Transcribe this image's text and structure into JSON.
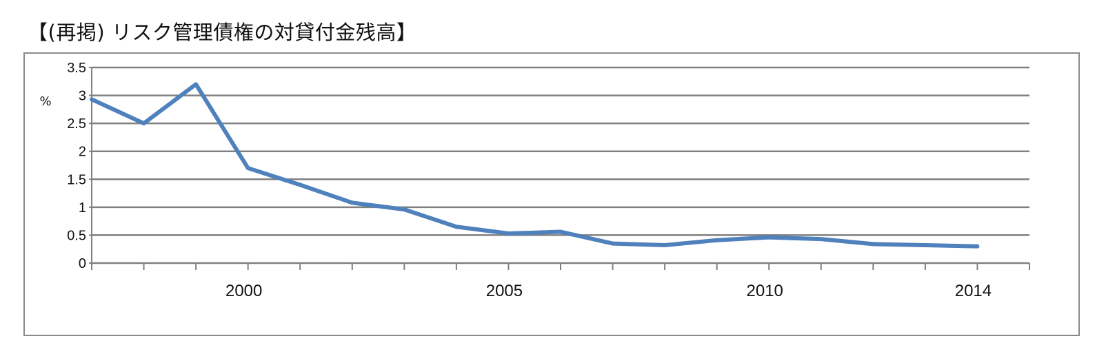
{
  "chart_data": {
    "type": "line",
    "title": "【(再掲) リスク管理債権の対貸付金残高】",
    "xlabel": "",
    "ylabel": "%",
    "xlim": [
      1997,
      2015
    ],
    "ylim": [
      0,
      3.5
    ],
    "yticks": [
      0,
      0.5,
      1,
      1.5,
      2,
      2.5,
      3,
      3.5
    ],
    "ytick_labels": [
      "0",
      "0.5",
      "1",
      "1.5",
      "2",
      "2.5",
      "3",
      "3.5"
    ],
    "xtick_labels": [
      {
        "x": 2000,
        "label": "2000"
      },
      {
        "x": 2005,
        "label": "2005"
      },
      {
        "x": 2010,
        "label": "2010"
      },
      {
        "x": 2014,
        "label": "2014"
      }
    ],
    "grid": true,
    "legend": "none",
    "colors": {
      "series": "#4f81bd",
      "grid": "#808080",
      "axis": "#808080",
      "frame": "#8a8a8a"
    },
    "series": [
      {
        "x": [
          1997,
          1998,
          1999,
          2000,
          2001,
          2002,
          2003,
          2004,
          2005,
          2006,
          2007,
          2008,
          2009,
          2010,
          2011,
          2012,
          2013,
          2014
        ],
        "values": [
          2.93,
          2.5,
          3.2,
          1.7,
          1.4,
          1.08,
          0.96,
          0.65,
          0.53,
          0.56,
          0.35,
          0.32,
          0.41,
          0.46,
          0.43,
          0.34,
          0.32,
          0.3
        ]
      }
    ]
  }
}
